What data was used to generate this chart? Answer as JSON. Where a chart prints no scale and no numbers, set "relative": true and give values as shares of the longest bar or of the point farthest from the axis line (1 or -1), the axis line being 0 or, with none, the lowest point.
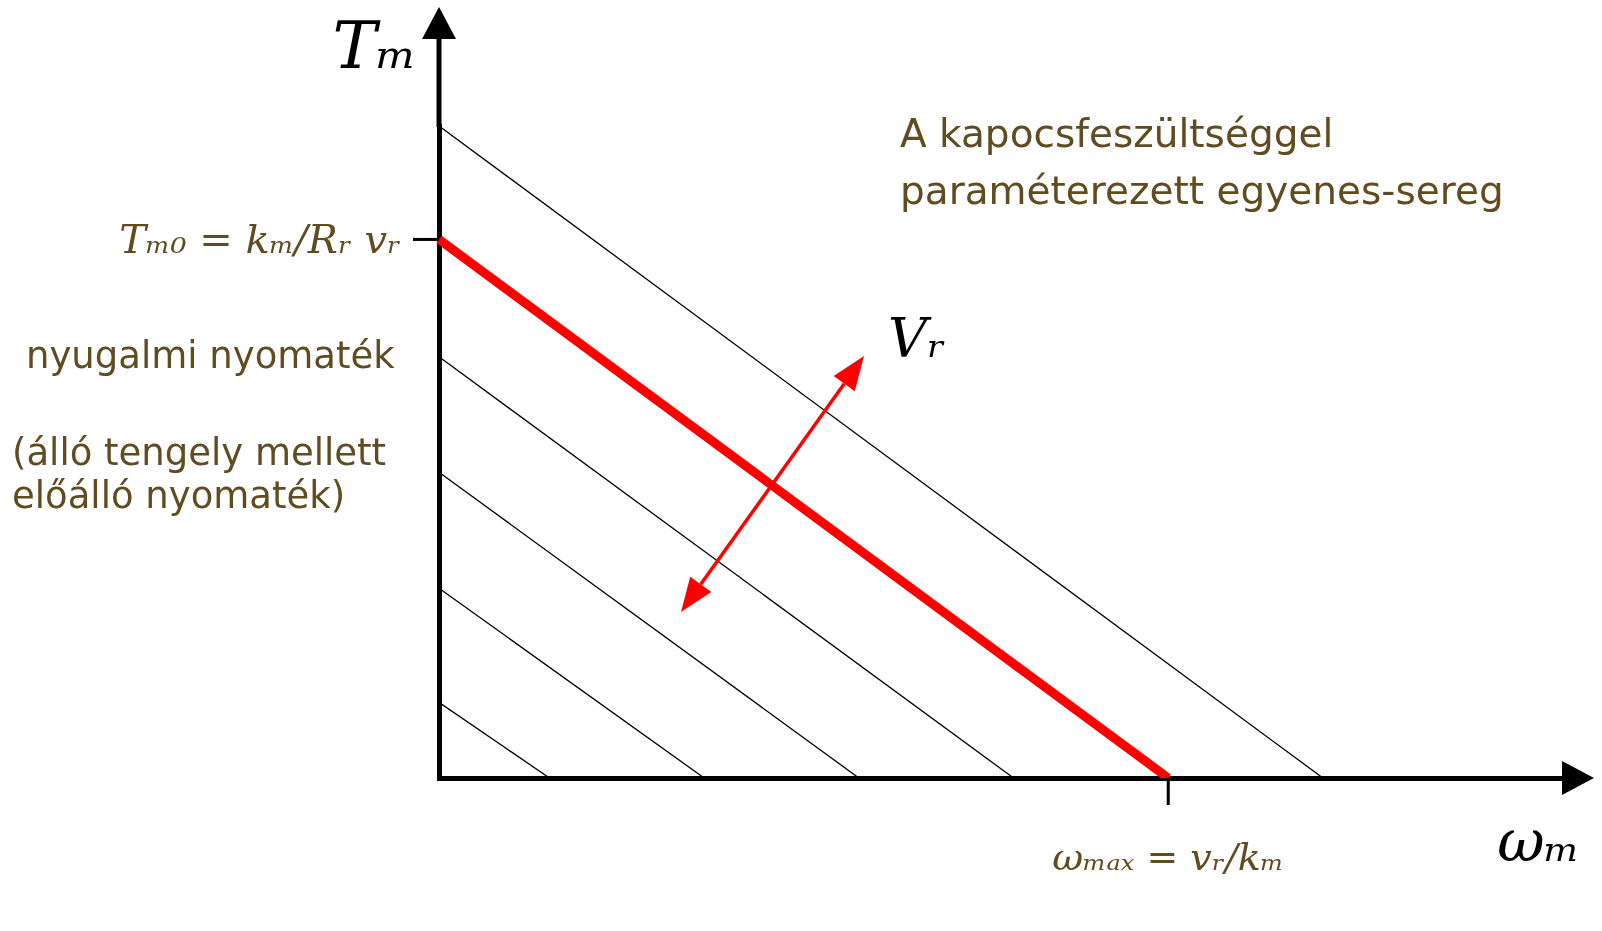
{
  "chart_data": {
    "type": "line",
    "relative": true,
    "xlabel": "ωₘ",
    "ylabel": "Tₘ",
    "marker": "none",
    "categories": [
      null,
      null,
      null,
      null,
      null,
      null,
      null,
      null,
      null,
      null,
      null,
      null,
      null,
      null,
      null,
      null,
      null,
      null,
      null,
      null,
      null,
      null,
      null,
      null,
      null,
      null,
      null,
      null,
      null,
      null,
      null,
      null,
      null,
      null,
      null,
      null,
      null,
      null,
      null,
      null,
      null,
      null,
      null,
      null,
      null,
      null,
      null,
      null,
      null,
      null,
      null,
      null
    ],
    "series": [
      {
        "color": "#000000",
        "values": [
          0.116,
          null,
          null,
          null,
          null,
          0,
          null,
          null,
          null,
          null,
          null,
          null,
          null,
          null,
          null,
          null,
          null,
          null,
          null,
          null,
          null,
          null,
          null,
          null,
          null,
          null,
          null,
          null,
          null,
          null,
          null,
          null,
          null,
          null,
          null,
          null,
          null,
          null,
          null,
          null,
          null,
          null,
          null,
          null,
          null,
          null,
          null,
          null,
          null,
          null,
          null,
          null
        ]
      },
      {
        "color": "#000000",
        "values": [
          0.291,
          null,
          null,
          null,
          null,
          null,
          null,
          null,
          null,
          null,
          null,
          null,
          0,
          null,
          null,
          null,
          null,
          null,
          null,
          null,
          null,
          null,
          null,
          null,
          null,
          null,
          null,
          null,
          null,
          null,
          null,
          null,
          null,
          null,
          null,
          null,
          null,
          null,
          null,
          null,
          null,
          null,
          null,
          null,
          null,
          null,
          null,
          null,
          null,
          null,
          null,
          null
        ]
      },
      {
        "color": "#000000",
        "values": [
          0.469,
          null,
          null,
          null,
          null,
          null,
          null,
          null,
          null,
          null,
          null,
          null,
          null,
          null,
          null,
          null,
          null,
          null,
          null,
          0,
          null,
          null,
          null,
          null,
          null,
          null,
          null,
          null,
          null,
          null,
          null,
          null,
          null,
          null,
          null,
          null,
          null,
          null,
          null,
          null,
          null,
          null,
          null,
          null,
          null,
          null,
          null,
          null,
          null,
          null,
          null,
          null
        ]
      },
      {
        "color": "#000000",
        "values": [
          0.646,
          null,
          null,
          null,
          null,
          null,
          null,
          null,
          null,
          null,
          null,
          null,
          null,
          null,
          null,
          null,
          null,
          null,
          null,
          null,
          null,
          null,
          null,
          null,
          null,
          null,
          0,
          null,
          null,
          null,
          null,
          null,
          null,
          null,
          null,
          null,
          null,
          null,
          null,
          null,
          null,
          null,
          null,
          null,
          null,
          null,
          null,
          null,
          null,
          null,
          null,
          null
        ]
      },
      {
        "color": "#ff0000",
        "values": [
          0.826,
          null,
          null,
          null,
          null,
          null,
          null,
          null,
          null,
          null,
          null,
          null,
          null,
          null,
          null,
          null,
          null,
          null,
          null,
          null,
          null,
          null,
          null,
          null,
          null,
          null,
          null,
          null,
          null,
          null,
          null,
          null,
          null,
          0,
          null,
          null,
          null,
          null,
          null,
          null,
          null,
          null,
          null,
          null,
          null,
          null,
          null,
          null,
          null,
          null,
          null,
          null
        ]
      },
      {
        "color": "#000000",
        "values": [
          1,
          null,
          null,
          null,
          null,
          null,
          null,
          null,
          null,
          null,
          null,
          null,
          null,
          null,
          null,
          null,
          null,
          null,
          null,
          null,
          null,
          null,
          null,
          null,
          null,
          null,
          null,
          null,
          null,
          null,
          null,
          null,
          null,
          null,
          null,
          null,
          null,
          null,
          null,
          null,
          0,
          null,
          null,
          null,
          null,
          null,
          null,
          null,
          null,
          null,
          null,
          null
        ]
      }
    ],
    "annotations": [
      "Tₘ₀ = kₘ/Rᵣ vᵣ",
      "ωₘₐₓ = vᵣ/kₘ",
      "nyugalmi nyomaték",
      "(álló tengely mellett előálló nyomaték)",
      "A kapocsfeszültséggel paraméterezett egyenes-sereg",
      "Vᵣ"
    ]
  }
}
